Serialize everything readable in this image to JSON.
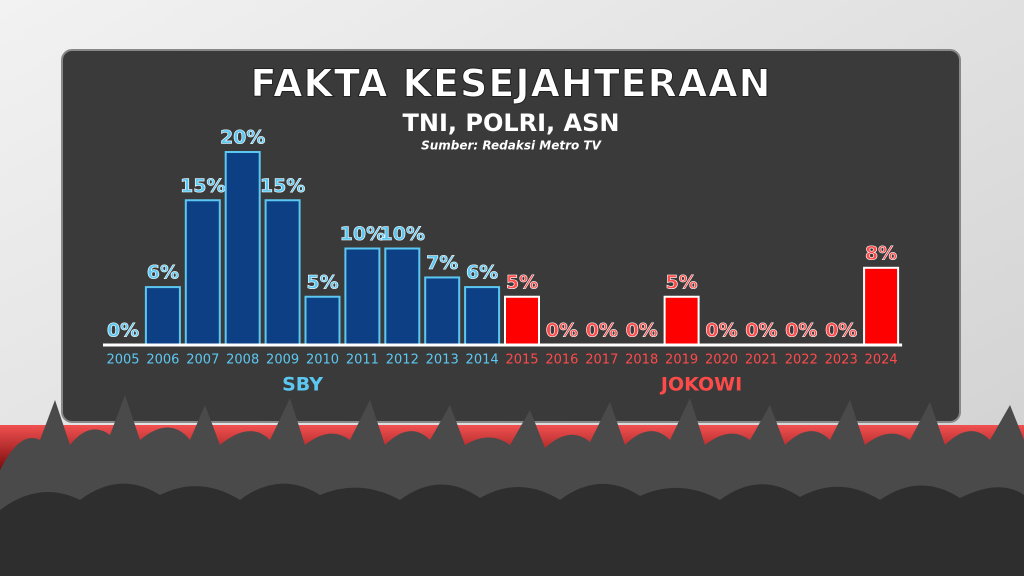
{
  "chart_data": {
    "type": "bar",
    "title": "FAKTA KESEJAHTERAAN",
    "subtitle": "TNI, POLRI, ASN",
    "source": "Sumber: Redaksi Metro TV",
    "groups": [
      {
        "name": "SBY",
        "color": "#0d3f85",
        "label_color": "#5cc8f2",
        "categories": [
          "2005",
          "2006",
          "2007",
          "2008",
          "2009",
          "2010",
          "2011",
          "2012",
          "2013",
          "2014"
        ],
        "values": [
          0,
          6,
          15,
          20,
          15,
          5,
          10,
          10,
          7,
          6
        ],
        "value_labels": [
          "0%",
          "6%",
          "15%",
          "20%",
          "15%",
          "5%",
          "10%",
          "10%",
          "7%",
          "6%"
        ]
      },
      {
        "name": "JOKOWI",
        "color": "#ff0000",
        "label_color": "#ff4a4a",
        "categories": [
          "2015",
          "2016",
          "2017",
          "2018",
          "2019",
          "2020",
          "2021",
          "2022",
          "2023",
          "2024"
        ],
        "values": [
          5,
          0,
          0,
          0,
          5,
          0,
          0,
          0,
          0,
          8
        ],
        "value_labels": [
          "5%",
          "0%",
          "0%",
          "0%",
          "5%",
          "0%",
          "0%",
          "0%",
          "0%",
          "8%"
        ]
      }
    ]
  }
}
